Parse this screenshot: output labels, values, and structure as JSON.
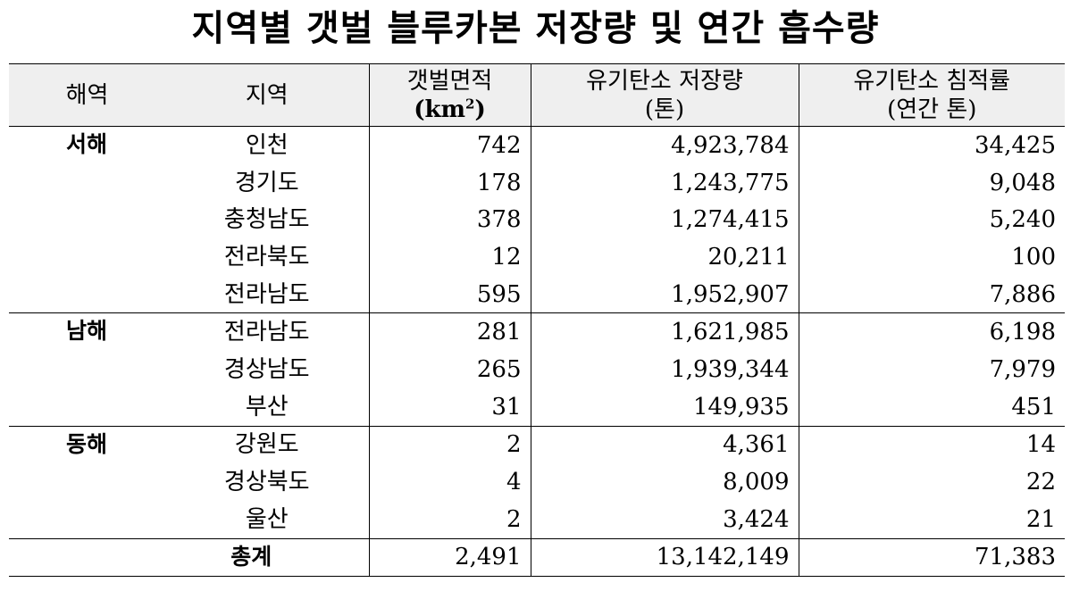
{
  "title": "지역별 갯벌 블루카본 저장량 및 연간 흡수량",
  "headers": {
    "sea": "해역",
    "region": "지역",
    "area_line1": "갯벌면적",
    "area_line2_base": "(km",
    "area_line2_sup": "2",
    "area_line2_end": ")",
    "storage_line1": "유기탄소 저장량",
    "storage_line2": "(톤)",
    "rate_line1": "유기탄소 침적률",
    "rate_line2": "(연간 톤)"
  },
  "groups": [
    {
      "sea": "서해",
      "rows": [
        {
          "region": "인천",
          "area": "742",
          "storage": "4,923,784",
          "rate": "34,425"
        },
        {
          "region": "경기도",
          "area": "178",
          "storage": "1,243,775",
          "rate": "9,048"
        },
        {
          "region": "충청남도",
          "area": "378",
          "storage": "1,274,415",
          "rate": "5,240"
        },
        {
          "region": "전라북도",
          "area": "12",
          "storage": "20,211",
          "rate": "100"
        },
        {
          "region": "전라남도",
          "area": "595",
          "storage": "1,952,907",
          "rate": "7,886"
        }
      ]
    },
    {
      "sea": "남해",
      "rows": [
        {
          "region": "전라남도",
          "area": "281",
          "storage": "1,621,985",
          "rate": "6,198"
        },
        {
          "region": "경상남도",
          "area": "265",
          "storage": "1,939,344",
          "rate": "7,979"
        },
        {
          "region": "부산",
          "area": "31",
          "storage": "149,935",
          "rate": "451"
        }
      ]
    },
    {
      "sea": "동해",
      "rows": [
        {
          "region": "강원도",
          "area": "2",
          "storage": "4,361",
          "rate": "14"
        },
        {
          "region": "경상북도",
          "area": "4",
          "storage": "8,009",
          "rate": "22"
        },
        {
          "region": "울산",
          "area": "2",
          "storage": "3,424",
          "rate": "21"
        }
      ]
    }
  ],
  "total": {
    "label": "총계",
    "area": "2,491",
    "storage": "13,142,149",
    "rate": "71,383"
  }
}
